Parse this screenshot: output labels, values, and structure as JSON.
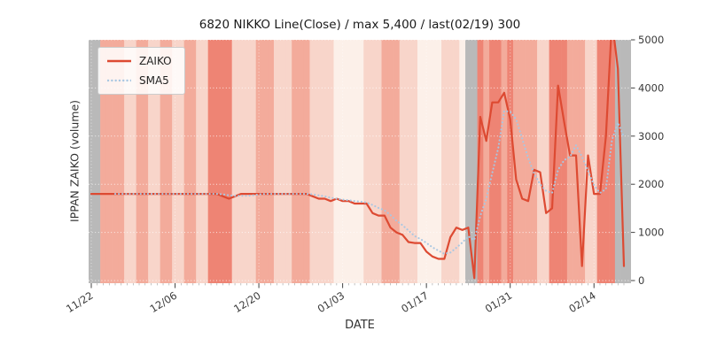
{
  "chart_data": {
    "type": "line",
    "title": "6820 NIKKO Line(Close) / max 5,400 / last(02/19) 300",
    "xlabel": "DATE",
    "ylabel": "IPPAN ZAIKO (volume)",
    "yticks": [
      0,
      1000,
      2000,
      3000,
      4000,
      5000
    ],
    "ylim": [
      -55,
      5037
    ],
    "xticks": [
      "11/22",
      "12/06",
      "12/20",
      "01/03",
      "01/17",
      "01/31",
      "02/14"
    ],
    "xtick_offsets": [
      0,
      14,
      28,
      42,
      56,
      70,
      84
    ],
    "legend_position": "upper left",
    "grid": true,
    "dates": [
      "11/22",
      "11/23",
      "11/24",
      "11/25",
      "11/26",
      "11/27",
      "11/28",
      "11/29",
      "11/30",
      "12/01",
      "12/02",
      "12/03",
      "12/04",
      "12/05",
      "12/06",
      "12/07",
      "12/08",
      "12/09",
      "12/10",
      "12/11",
      "12/12",
      "12/13",
      "12/14",
      "12/15",
      "12/16",
      "12/17",
      "12/18",
      "12/19",
      "12/20",
      "12/21",
      "12/22",
      "12/23",
      "12/24",
      "12/25",
      "12/26",
      "12/27",
      "12/28",
      "12/29",
      "12/30",
      "12/31",
      "01/01",
      "01/02",
      "01/03",
      "01/04",
      "01/05",
      "01/06",
      "01/07",
      "01/08",
      "01/09",
      "01/10",
      "01/11",
      "01/12",
      "01/13",
      "01/14",
      "01/15",
      "01/16",
      "01/17",
      "01/18",
      "01/19",
      "01/20",
      "01/21",
      "01/22",
      "01/23",
      "01/24",
      "01/25",
      "01/26",
      "01/27",
      "01/28",
      "01/29",
      "01/30",
      "01/31",
      "02/01",
      "02/02",
      "02/03",
      "02/04",
      "02/05",
      "02/06",
      "02/07",
      "02/08",
      "02/09",
      "02/10",
      "02/11",
      "02/12",
      "02/13",
      "02/14",
      "02/15",
      "02/16",
      "02/17",
      "02/18",
      "02/19"
    ],
    "series": [
      {
        "name": "ZAIKO",
        "color": "#dd4a32",
        "style": "solid",
        "values": [
          1800,
          1800,
          1800,
          1800,
          1800,
          1800,
          1800,
          1800,
          1800,
          1800,
          1800,
          1800,
          1800,
          1800,
          1800,
          1800,
          1800,
          1800,
          1800,
          1800,
          1800,
          1800,
          1750,
          1700,
          1750,
          1800,
          1800,
          1800,
          1800,
          1800,
          1800,
          1800,
          1800,
          1800,
          1800,
          1800,
          1800,
          1750,
          1700,
          1700,
          1650,
          1700,
          1650,
          1650,
          1600,
          1600,
          1600,
          1400,
          1350,
          1350,
          1100,
          1000,
          950,
          800,
          780,
          780,
          600,
          500,
          450,
          450,
          900,
          1100,
          1050,
          1100,
          50,
          3400,
          2900,
          3700,
          3700,
          3900,
          3350,
          2100,
          1700,
          1650,
          2300,
          2250,
          1400,
          1500,
          4050,
          3300,
          2600,
          2600,
          300,
          2600,
          1800,
          1800,
          3000,
          5400,
          4400,
          300
        ]
      },
      {
        "name": "SMA5",
        "color": "#a9c7e2",
        "style": "dotted",
        "derived": "sma",
        "window": 5
      }
    ],
    "max_value": 5400,
    "last_date": "02/19",
    "last_value": 300,
    "background_bands": {
      "palette": {
        "0": "#b9b9b9",
        "1": "#fcf0e9",
        "2": "#f8d5ca",
        "3": "#f3ab9b",
        "4": "#ee8474"
      },
      "codes": "003333223322332233224444222233322233322221111122233322211112221004344343333224443332244400"
    }
  }
}
